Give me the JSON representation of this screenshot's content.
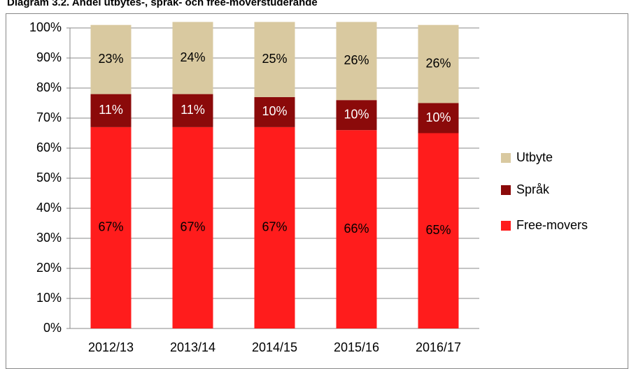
{
  "chart_data": {
    "type": "stacked_bar",
    "title": "Diagram 3.2. Andel utbytes-, språk- och free-moverstuderande",
    "categories": [
      "2012/13",
      "2013/14",
      "2014/15",
      "2015/16",
      "2016/17"
    ],
    "series": [
      {
        "name": "Free-movers",
        "color": "#ff1c1c",
        "values": [
          67,
          67,
          67,
          66,
          65
        ],
        "value_labels": [
          "67%",
          "67%",
          "67%",
          "66%",
          "65%"
        ]
      },
      {
        "name": "Språk",
        "color": "#8b0a0a",
        "values": [
          11,
          11,
          10,
          10,
          10
        ],
        "value_labels": [
          "11%",
          "11%",
          "10%",
          "10%",
          "10%"
        ]
      },
      {
        "name": "Utbyte",
        "color": "#d9c9a0",
        "values": [
          23,
          24,
          25,
          26,
          26
        ],
        "value_labels": [
          "23%",
          "24%",
          "25%",
          "26%",
          "26%"
        ]
      }
    ],
    "ylim": [
      0,
      100
    ],
    "yticks": [
      {
        "value": 0,
        "label": "0%"
      },
      {
        "value": 10,
        "label": "10%"
      },
      {
        "value": 20,
        "label": "20%"
      },
      {
        "value": 30,
        "label": "30%"
      },
      {
        "value": 40,
        "label": "40%"
      },
      {
        "value": 50,
        "label": "50%"
      },
      {
        "value": 60,
        "label": "60%"
      },
      {
        "value": 70,
        "label": "70%"
      },
      {
        "value": 80,
        "label": "80%"
      },
      {
        "value": 90,
        "label": "90%"
      },
      {
        "value": 100,
        "label": "100%"
      }
    ],
    "grid": true,
    "legend": "right"
  }
}
